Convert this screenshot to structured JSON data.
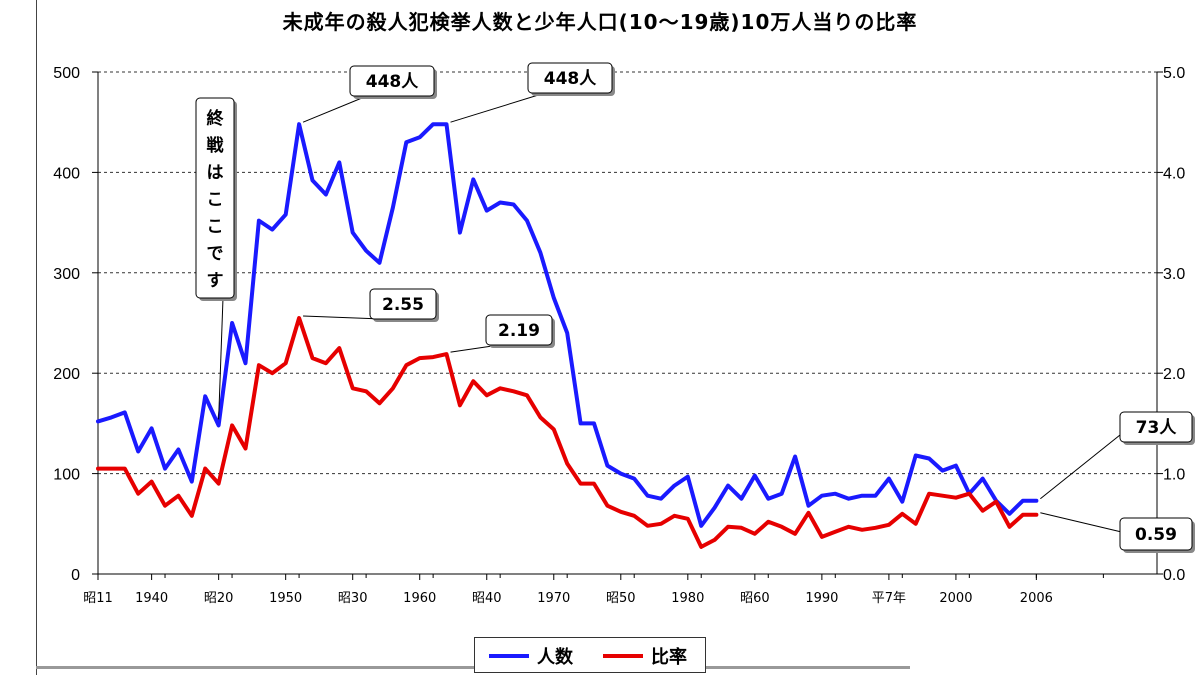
{
  "chart_data": {
    "type": "line",
    "title": "未成年の殺人犯検挙人数と少年人口(10〜19歳)10万人当りの比率",
    "left_axis": {
      "ylim": [
        0,
        500
      ],
      "ticks": [
        "0",
        "100",
        "200",
        "300",
        "400",
        "500"
      ]
    },
    "right_axis": {
      "ylim": [
        0.0,
        5.0
      ],
      "ticks": [
        "0.0",
        "1.0",
        "2.0",
        "3.0",
        "4.0",
        "5.0"
      ]
    },
    "x_range": [
      1936,
      2015
    ],
    "x_ticks": [
      {
        "x": 1936,
        "label": "昭11"
      },
      {
        "x": 1940,
        "label": "1940"
      },
      {
        "x": 1945,
        "label": "昭20"
      },
      {
        "x": 1950,
        "label": "1950"
      },
      {
        "x": 1955,
        "label": "昭30"
      },
      {
        "x": 1960,
        "label": "1960"
      },
      {
        "x": 1965,
        "label": "昭40"
      },
      {
        "x": 1970,
        "label": "1970"
      },
      {
        "x": 1975,
        "label": "昭50"
      },
      {
        "x": 1980,
        "label": "1980"
      },
      {
        "x": 1985,
        "label": "昭60"
      },
      {
        "x": 1990,
        "label": "1990"
      },
      {
        "x": 1995,
        "label": "平7年"
      },
      {
        "x": 2000,
        "label": "2000"
      },
      {
        "x": 2006,
        "label": "2006"
      }
    ],
    "grid": "horizontal-dashed",
    "legend_position": "bottom",
    "series": [
      {
        "name": "人数",
        "color": "#1a1aff",
        "axis": "left",
        "x": [
          1936,
          1937,
          1938,
          1939,
          1940,
          1941,
          1942,
          1943,
          1944,
          1945,
          1946,
          1947,
          1948,
          1949,
          1950,
          1951,
          1952,
          1953,
          1954,
          1955,
          1956,
          1957,
          1958,
          1959,
          1960,
          1961,
          1962,
          1963,
          1964,
          1965,
          1966,
          1967,
          1968,
          1969,
          1970,
          1971,
          1972,
          1973,
          1974,
          1975,
          1976,
          1977,
          1978,
          1979,
          1980,
          1981,
          1982,
          1983,
          1984,
          1985,
          1986,
          1987,
          1988,
          1989,
          1990,
          1991,
          1992,
          1993,
          1994,
          1995,
          1996,
          1997,
          1998,
          1999,
          2000,
          2001,
          2002,
          2003,
          2004,
          2005,
          2006
        ],
        "values": [
          152,
          156,
          161,
          122,
          145,
          105,
          124,
          92,
          177,
          148,
          250,
          210,
          352,
          343,
          358,
          448,
          392,
          378,
          410,
          340,
          322,
          310,
          365,
          430,
          435,
          448,
          448,
          340,
          393,
          362,
          370,
          368,
          352,
          320,
          275,
          240,
          150,
          150,
          108,
          100,
          95,
          78,
          75,
          88,
          97,
          48,
          66,
          88,
          75,
          98,
          75,
          80,
          117,
          68,
          78,
          80,
          75,
          78,
          78,
          95,
          72,
          118,
          115,
          103,
          108,
          80,
          95,
          73,
          60,
          73,
          73
        ]
      },
      {
        "name": "比率",
        "color": "#e60000",
        "axis": "right",
        "x": [
          1936,
          1937,
          1938,
          1939,
          1940,
          1941,
          1942,
          1943,
          1944,
          1945,
          1946,
          1947,
          1948,
          1949,
          1950,
          1951,
          1952,
          1953,
          1954,
          1955,
          1956,
          1957,
          1958,
          1959,
          1960,
          1961,
          1962,
          1963,
          1964,
          1965,
          1966,
          1967,
          1968,
          1969,
          1970,
          1971,
          1972,
          1973,
          1974,
          1975,
          1976,
          1977,
          1978,
          1979,
          1980,
          1981,
          1982,
          1983,
          1984,
          1985,
          1986,
          1987,
          1988,
          1989,
          1990,
          1991,
          1992,
          1993,
          1994,
          1995,
          1996,
          1997,
          1998,
          1999,
          2000,
          2001,
          2002,
          2003,
          2004,
          2005,
          2006
        ],
        "values": [
          1.05,
          1.05,
          1.05,
          0.8,
          0.92,
          0.68,
          0.78,
          0.58,
          1.05,
          0.9,
          1.48,
          1.25,
          2.08,
          2.0,
          2.1,
          2.55,
          2.15,
          2.1,
          2.25,
          1.85,
          1.82,
          1.7,
          1.85,
          2.08,
          2.15,
          2.16,
          2.19,
          1.68,
          1.92,
          1.78,
          1.85,
          1.82,
          1.78,
          1.56,
          1.44,
          1.1,
          0.9,
          0.9,
          0.68,
          0.62,
          0.58,
          0.48,
          0.5,
          0.58,
          0.55,
          0.27,
          0.34,
          0.47,
          0.46,
          0.4,
          0.52,
          0.47,
          0.4,
          0.61,
          0.37,
          0.42,
          0.47,
          0.44,
          0.46,
          0.49,
          0.6,
          0.5,
          0.8,
          0.78,
          0.76,
          0.8,
          0.63,
          0.72,
          0.47,
          0.59,
          0.59
        ]
      }
    ],
    "annotations": [
      {
        "text": "448人",
        "x": 1951,
        "series": "人数"
      },
      {
        "text": "448人",
        "x": 1962,
        "series": "人数"
      },
      {
        "text": "2.55",
        "x": 1951,
        "series": "比率"
      },
      {
        "text": "2.19",
        "x": 1962,
        "series": "比率"
      },
      {
        "text": "73人",
        "x": 2006,
        "series": "人数"
      },
      {
        "text": "0.59",
        "x": 2006,
        "series": "比率"
      },
      {
        "text": "終戦はここです",
        "x": 1945,
        "orientation": "vertical"
      }
    ]
  },
  "legend": [
    {
      "label": "人数",
      "color": "#1a1aff"
    },
    {
      "label": "比率",
      "color": "#e60000"
    }
  ]
}
